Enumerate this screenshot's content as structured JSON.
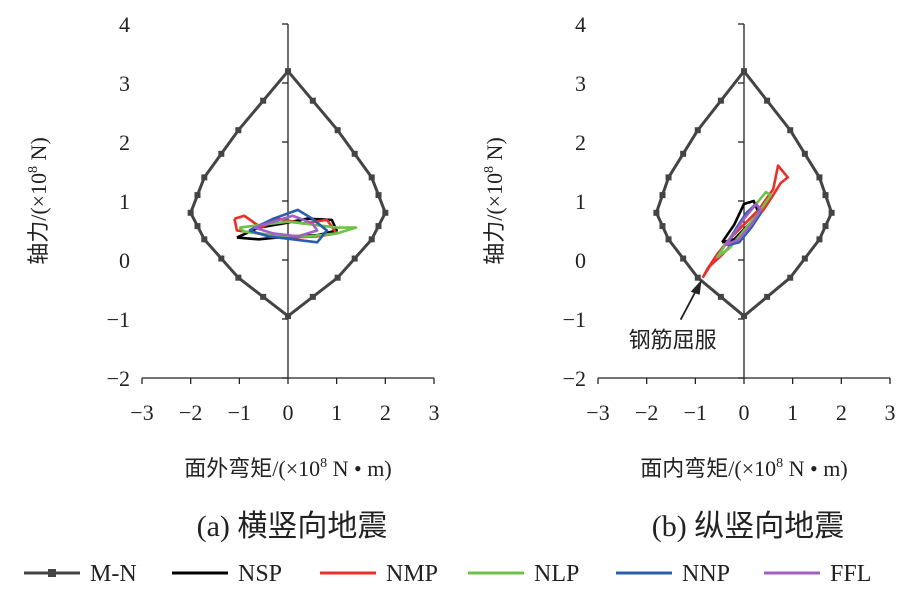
{
  "chart_data": [
    {
      "type": "line",
      "caption": "(a) 横竖向地震",
      "xlabel_main": "面外弯矩/(×10",
      "xlabel_exp": "8",
      "xlabel_tail": " N • m)",
      "ylabel_main": "轴力/(×10",
      "ylabel_exp": "8",
      "ylabel_tail": " N)",
      "xlim": [
        -3,
        3
      ],
      "ylim": [
        -2,
        4
      ],
      "xticks": [
        "−3",
        "−2",
        "−1",
        "0",
        "1",
        "2",
        "3"
      ],
      "yticks": [
        "−2",
        "−1",
        "0",
        "1",
        "2",
        "3",
        "4"
      ],
      "series": [
        {
          "name": "M-N",
          "x": [
            0,
            1.02,
            1.72,
            2.0,
            1.72,
            1.02,
            0,
            -1.02,
            -1.72,
            -2.0,
            -1.72,
            -1.02,
            0
          ],
          "y": [
            3.2,
            2.2,
            1.4,
            0.8,
            0.35,
            -0.3,
            -0.95,
            -0.3,
            0.35,
            0.8,
            1.4,
            2.2,
            3.2
          ]
        },
        {
          "name": "NSP",
          "x": [
            -1.05,
            -0.6,
            -0.1,
            0.4,
            0.9,
            1.0,
            0.6,
            0.0,
            -0.6,
            -1.05
          ],
          "y": [
            0.38,
            0.55,
            0.62,
            0.7,
            0.68,
            0.5,
            0.42,
            0.4,
            0.35,
            0.38
          ]
        },
        {
          "name": "NMP",
          "x": [
            -1.1,
            -0.9,
            -0.55,
            -0.2,
            0.3,
            0.8,
            1.0,
            0.6,
            0.0,
            -0.6,
            -1.05,
            -1.1
          ],
          "y": [
            0.7,
            0.75,
            0.55,
            0.7,
            0.62,
            0.68,
            0.45,
            0.4,
            0.38,
            0.45,
            0.5,
            0.7
          ]
        },
        {
          "name": "NLP",
          "x": [
            -1.0,
            -0.5,
            0.0,
            0.5,
            1.0,
            1.4,
            1.0,
            0.4,
            -0.3,
            -0.9,
            -1.0
          ],
          "y": [
            0.55,
            0.6,
            0.65,
            0.6,
            0.55,
            0.55,
            0.45,
            0.4,
            0.42,
            0.48,
            0.55
          ]
        },
        {
          "name": "NNP",
          "x": [
            -0.8,
            -0.3,
            0.2,
            0.5,
            0.8,
            0.6,
            0.1,
            -0.4,
            -0.8
          ],
          "y": [
            0.5,
            0.7,
            0.85,
            0.7,
            0.5,
            0.3,
            0.35,
            0.4,
            0.5
          ]
        },
        {
          "name": "FFL",
          "x": [
            -0.7,
            -0.3,
            0.1,
            0.5,
            0.6,
            0.2,
            -0.3,
            -0.7
          ],
          "y": [
            0.55,
            0.65,
            0.75,
            0.62,
            0.5,
            0.4,
            0.45,
            0.55
          ]
        }
      ]
    },
    {
      "type": "line",
      "caption": "(b) 纵竖向地震",
      "xlabel_main": "面内弯矩/(×10",
      "xlabel_exp": "8",
      "xlabel_tail": " N • m)",
      "ylabel_main": "轴力/(×10",
      "ylabel_exp": "8",
      "ylabel_tail": " N)",
      "xlim": [
        -3,
        3
      ],
      "ylim": [
        -2,
        4
      ],
      "xticks": [
        "−3",
        "−2",
        "−1",
        "0",
        "1",
        "2",
        "3"
      ],
      "yticks": [
        "−2",
        "−1",
        "0",
        "1",
        "2",
        "3",
        "4"
      ],
      "annotation": "钢筋屈服",
      "annotation_point": [
        -0.85,
        -0.3
      ],
      "series": [
        {
          "name": "M-N",
          "x": [
            0,
            0.95,
            1.55,
            1.8,
            1.55,
            0.95,
            0,
            -0.95,
            -1.55,
            -1.8,
            -1.55,
            -0.95,
            0
          ],
          "y": [
            3.2,
            2.2,
            1.4,
            0.8,
            0.35,
            -0.3,
            -0.95,
            -0.3,
            0.35,
            0.8,
            1.4,
            2.2,
            3.2
          ]
        },
        {
          "name": "NSP",
          "x": [
            -0.45,
            -0.2,
            0.0,
            0.2,
            0.3,
            0.1,
            -0.2,
            -0.45
          ],
          "y": [
            0.3,
            0.6,
            0.95,
            1.0,
            0.8,
            0.6,
            0.35,
            0.3
          ]
        },
        {
          "name": "NMP",
          "x": [
            -0.85,
            -0.75,
            -0.55,
            -0.3,
            0.0,
            0.3,
            0.6,
            0.7,
            0.9,
            0.75,
            0.6,
            0.4,
            0.1,
            -0.2,
            -0.5,
            -0.7,
            -0.85
          ],
          "y": [
            -0.3,
            -0.15,
            0.1,
            0.35,
            0.6,
            0.85,
            1.2,
            1.6,
            1.4,
            1.3,
            1.1,
            0.85,
            0.55,
            0.3,
            0.05,
            -0.1,
            -0.3
          ]
        },
        {
          "name": "NLP",
          "x": [
            -0.55,
            -0.35,
            -0.1,
            0.2,
            0.45,
            0.55,
            0.3,
            0.0,
            -0.3,
            -0.55
          ],
          "y": [
            0.05,
            0.3,
            0.6,
            0.9,
            1.15,
            1.1,
            0.8,
            0.5,
            0.2,
            0.05
          ]
        },
        {
          "name": "NNP",
          "x": [
            -0.35,
            -0.15,
            0.05,
            0.25,
            0.35,
            0.15,
            -0.1,
            -0.35
          ],
          "y": [
            0.25,
            0.55,
            0.8,
            0.95,
            0.8,
            0.55,
            0.3,
            0.25
          ]
        },
        {
          "name": "FFL",
          "x": [
            -0.4,
            -0.2,
            0.0,
            0.25,
            0.35,
            0.15,
            -0.1,
            -0.4
          ],
          "y": [
            0.25,
            0.45,
            0.7,
            0.95,
            0.85,
            0.6,
            0.35,
            0.25
          ]
        }
      ]
    }
  ],
  "legend": [
    {
      "name": "M-N",
      "color": "#444444",
      "marker": "square"
    },
    {
      "name": "NSP",
      "color": "#000000",
      "marker": "none"
    },
    {
      "name": "NMP",
      "color": "#e8302a",
      "marker": "none"
    },
    {
      "name": "NLP",
      "color": "#6cc24a",
      "marker": "none"
    },
    {
      "name": "NNP",
      "color": "#2a5db0",
      "marker": "none"
    },
    {
      "name": "FFL",
      "color": "#a25fc4",
      "marker": "none"
    }
  ],
  "colors": {
    "M-N": "#444444",
    "NSP": "#000000",
    "NMP": "#e8302a",
    "NLP": "#6cc24a",
    "NNP": "#2a5db0",
    "FFL": "#a25fc4"
  }
}
